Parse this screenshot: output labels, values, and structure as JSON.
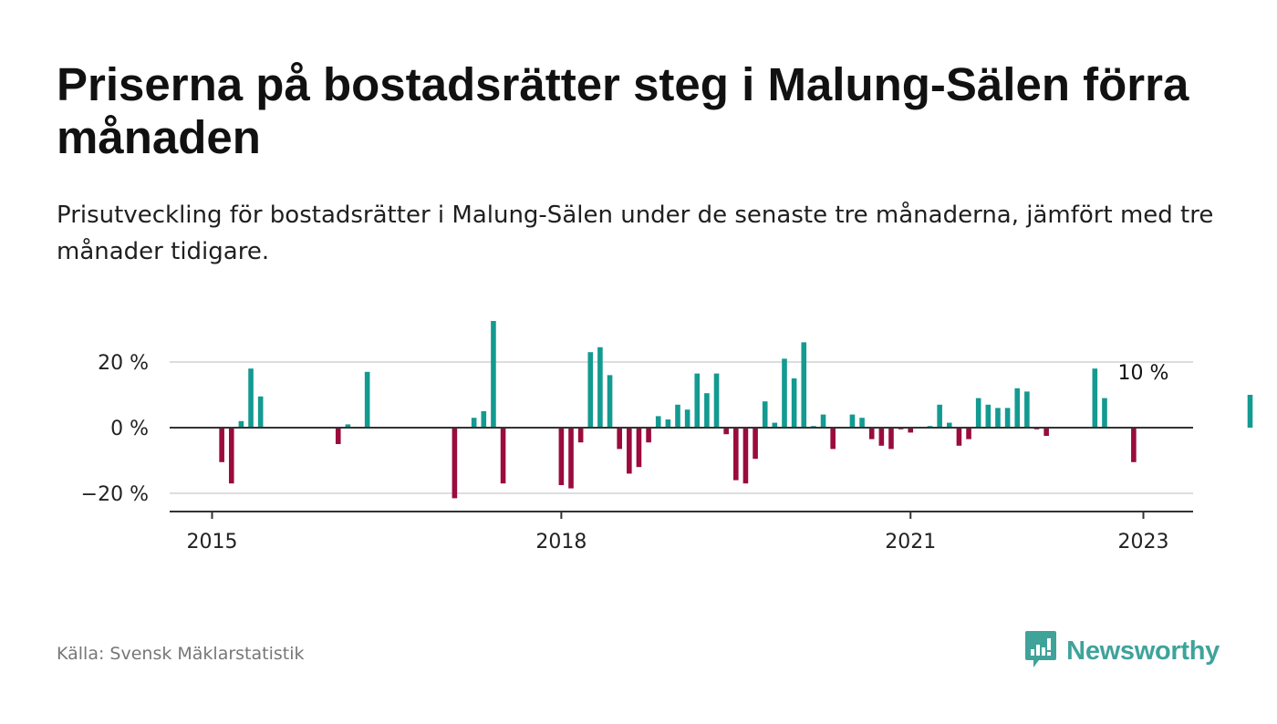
{
  "title": "Priserna på bostadsrätter steg i Malung-Sälen förra månaden",
  "subtitle": "Prisutveckling för bostadsrätter i Malung-Sälen under de senaste tre månaderna, jämfört med tre månader tidigare.",
  "source": "Källa: Svensk Mäklarstatistik",
  "brand": {
    "name": "Newsworthy",
    "icon": "newsworthy-logo-icon"
  },
  "colors": {
    "positive": "#139a91",
    "negative": "#9b0b3e",
    "grid": "#dddddd",
    "axis": "#333333",
    "brand": "#3fa39a"
  },
  "chart_data": {
    "type": "bar",
    "title": "",
    "xlabel": "",
    "ylabel": "",
    "x_start": "2015-01",
    "ylim": [
      -25,
      35
    ],
    "yticks": [
      -20,
      0,
      20
    ],
    "ytick_labels": [
      "−20 %",
      "0 %",
      "20 %"
    ],
    "xticks": [
      "2015-01",
      "2018-01",
      "2021-01",
      "2023-01"
    ],
    "xtick_labels": [
      "2015",
      "2018",
      "2021",
      "2023"
    ],
    "annotation": {
      "x": "2023-01",
      "value": 10,
      "text": "10 %"
    },
    "grid": true,
    "values": [
      null,
      -10.5,
      -17,
      2,
      18,
      9.5,
      null,
      null,
      null,
      null,
      null,
      null,
      null,
      -5,
      1,
      null,
      17,
      null,
      null,
      null,
      null,
      null,
      null,
      null,
      null,
      -21.5,
      null,
      3,
      5,
      32.5,
      -17,
      null,
      null,
      null,
      null,
      null,
      -17.5,
      -18.5,
      -4.5,
      23,
      24.5,
      16,
      -6.5,
      -14,
      -12,
      -4.5,
      3.5,
      2.5,
      7,
      5.5,
      16.5,
      10.5,
      16.5,
      -2,
      -16,
      -17,
      -9.5,
      8,
      1.5,
      21,
      15,
      26,
      0.5,
      4,
      -6.5,
      null,
      4,
      3,
      -3.5,
      -5.5,
      -6.5,
      -0.5,
      -1.5,
      null,
      0.5,
      7,
      1.5,
      -5.5,
      -3.5,
      9,
      7,
      6,
      6,
      12,
      11,
      -0.5,
      -2.5,
      null,
      null,
      null,
      null,
      18,
      9,
      null,
      null,
      -10.5,
      null,
      null,
      null,
      null,
      null,
      null,
      null,
      null,
      null,
      null,
      null,
      10
    ]
  }
}
